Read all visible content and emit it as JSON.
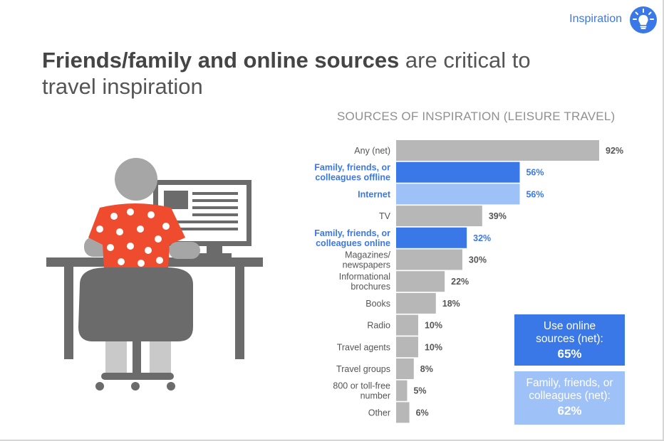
{
  "section_label": "Inspiration",
  "headline": {
    "bold": "Friends/family and online sources",
    "rest": " are critical to travel inspiration"
  },
  "colors": {
    "blue": "#3b78e7",
    "light_blue": "#9ec1f8",
    "gray": "#b7b7b7",
    "red": "#ee4b2f"
  },
  "chart_data": {
    "type": "bar",
    "orientation": "horizontal",
    "title": "SOURCES OF INSPIRATION (LEISURE TRAVEL)",
    "categories": [
      [
        "Any (net)"
      ],
      [
        "Family, friends, or",
        "colleagues offline"
      ],
      [
        "Internet"
      ],
      [
        "TV"
      ],
      [
        "Family, friends, or",
        "colleagues online"
      ],
      [
        "Magazines/",
        "newspapers"
      ],
      [
        "Informational",
        "brochures"
      ],
      [
        "Books"
      ],
      [
        "Radio"
      ],
      [
        "Travel agents"
      ],
      [
        "Travel groups"
      ],
      [
        "800 or toll-free",
        "number"
      ],
      [
        "Other"
      ]
    ],
    "values": [
      92,
      56,
      56,
      39,
      32,
      30,
      22,
      18,
      10,
      10,
      8,
      5,
      6
    ],
    "value_labels": [
      "92%",
      "56%",
      "56%",
      "39%",
      "32%",
      "30%",
      "22%",
      "18%",
      "10%",
      "10%",
      "8%",
      "5%",
      "6%"
    ],
    "highlight": [
      "gray",
      "blue",
      "light_blue",
      "gray",
      "blue",
      "gray",
      "gray",
      "gray",
      "gray",
      "gray",
      "gray",
      "gray",
      "gray"
    ],
    "xlim": [
      0,
      100
    ],
    "grid": false,
    "legend": "none"
  },
  "summary_boxes": [
    {
      "label_lines": [
        "Use online",
        "sources (net):"
      ],
      "value": "65%"
    },
    {
      "label_lines": [
        "Family, friends, or",
        "colleagues (net):"
      ],
      "value": "62%"
    }
  ]
}
